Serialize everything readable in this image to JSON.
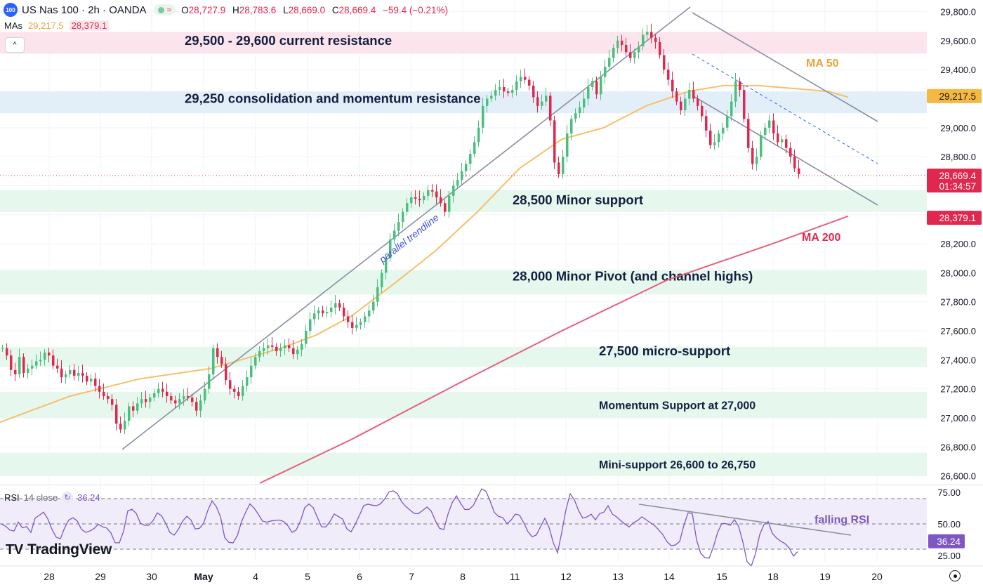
{
  "header": {
    "logo_text": "100",
    "symbol": "US Nas 100 · 2h · OANDA",
    "open_label": "O",
    "open": "28,727.9",
    "high_label": "H",
    "high": "28,783.6",
    "low_label": "L",
    "low": "28,669.0",
    "close_label": "C",
    "close": "28,669.4",
    "change": "−59.4 (−0.21%)"
  },
  "ma_legend": {
    "label": "MAs",
    "ma50_value": "29,217.5",
    "ma200_value": "28,379.1"
  },
  "collapse_icon": "chevron-up-icon",
  "rsi_legend": {
    "label": "RSI",
    "settings": "14 close",
    "value": "36.24"
  },
  "brand": {
    "name": "TradingView",
    "icon": "tradingview-logo-icon"
  },
  "settings_icon": "gear-icon",
  "colors": {
    "up": "#4bbf7d",
    "down": "#e0284f",
    "ma50": "#f5c06a",
    "ma200": "#e8607f",
    "trend": "#8a90a2",
    "rsi": "#7e57c2",
    "resistance_zone": "#fce4ec",
    "consolidation_zone": "#e3eff8",
    "support_zone": "#e6f7ee"
  },
  "chart_data": {
    "type": "candlestick",
    "ylim": [
      26550,
      29880
    ],
    "y_ticks": [
      "29,800.0",
      "29,600.0",
      "29,400.0",
      "29,200.0",
      "29,000.0",
      "28,800.0",
      "28,600.0",
      "28,400.0",
      "28,200.0",
      "28,000.0",
      "27,800.0",
      "27,600.0",
      "27,400.0",
      "27,200.0",
      "27,000.0",
      "26,800.0",
      "26,600.0"
    ],
    "y_tick_values": [
      29800,
      29600,
      29400,
      29200,
      29000,
      28800,
      28600,
      28400,
      28200,
      28000,
      27800,
      27600,
      27400,
      27200,
      27000,
      26800,
      26600
    ],
    "x_ticks": [
      "7",
      "28",
      "29",
      "30",
      "May",
      "4",
      "5",
      "6",
      "7",
      "8",
      "11",
      "12",
      "13",
      "14",
      "15",
      "18",
      "19",
      "20"
    ],
    "x_tick_bold": [
      "May"
    ],
    "price_labels": [
      {
        "text": "29,217.5",
        "value": 29217.5,
        "color": "#f5b942",
        "text_color": "#131722"
      },
      {
        "text": "28,669.4",
        "sub": "01:34:57",
        "value": 28669.4,
        "color": "#e0284f",
        "text_color": "#ffffff"
      },
      {
        "text": "28,379.1",
        "value": 28379.1,
        "color": "#e0284f",
        "text_color": "#ffffff"
      }
    ],
    "zones": [
      {
        "label": "29,500 - 29,600 current resistance",
        "low": 29510,
        "high": 29660,
        "kind": "resistance",
        "label_price": 29600,
        "label_pos": "left"
      },
      {
        "label": "29,250 consolidation and momentum resistance",
        "low": 29100,
        "high": 29250,
        "kind": "consolidation",
        "label_price": 29200,
        "label_pos": "left"
      },
      {
        "label": "28,500 Minor support",
        "low": 28420,
        "high": 28570,
        "kind": "support",
        "label_price": 28500,
        "label_pos": "mid"
      },
      {
        "label": "28,000 Minor Pivot (and channel highs)",
        "low": 27850,
        "high": 28020,
        "kind": "support",
        "label_price": 27975,
        "label_pos": "mid"
      },
      {
        "label": "27,500 micro-support",
        "low": 27350,
        "high": 27490,
        "kind": "support",
        "label_price": 27460,
        "label_pos": "mid2"
      },
      {
        "label": "Momentum Support at 27,000",
        "low": 27000,
        "high": 27180,
        "kind": "support",
        "label_price": 27090,
        "label_pos": "mid2",
        "small": true
      },
      {
        "label": "Mini-support 26,600 to 26,750",
        "low": 26600,
        "high": 26760,
        "kind": "support",
        "label_price": 26680,
        "label_pos": "mid2",
        "small": true
      }
    ],
    "annotations": [
      {
        "text": "MA 50",
        "color": "#e6a33b"
      },
      {
        "text": "MA 200",
        "color": "#e0284f"
      },
      {
        "text": "parallel trendline",
        "color": "#3f51d6"
      },
      {
        "text": "falling RSI",
        "color": "#7e57c2"
      }
    ],
    "series": [
      {
        "name": "MA 50",
        "points": [
          [
            0,
            26970
          ],
          [
            100,
            27150
          ],
          [
            200,
            27270
          ],
          [
            300,
            27340
          ],
          [
            400,
            27480
          ],
          [
            450,
            27570
          ],
          [
            500,
            27700
          ],
          [
            560,
            27920
          ],
          [
            620,
            28150
          ],
          [
            680,
            28420
          ],
          [
            740,
            28720
          ],
          [
            800,
            28920
          ],
          [
            860,
            29000
          ],
          [
            920,
            29150
          ],
          [
            980,
            29250
          ],
          [
            1030,
            29290
          ],
          [
            1080,
            29290
          ],
          [
            1130,
            29270
          ],
          [
            1180,
            29250
          ],
          [
            1208,
            29210
          ]
        ]
      },
      {
        "name": "MA 200",
        "points": [
          [
            370,
            26550
          ],
          [
            500,
            26850
          ],
          [
            650,
            27230
          ],
          [
            800,
            27600
          ],
          [
            950,
            27950
          ],
          [
            1100,
            28200
          ],
          [
            1208,
            28390
          ]
        ]
      }
    ],
    "candles": [
      [
        28,
        27480
      ],
      [
        30,
        27430
      ],
      [
        32,
        27330
      ],
      [
        34,
        27300
      ],
      [
        36,
        27420
      ],
      [
        38,
        27310
      ],
      [
        40,
        27340
      ],
      [
        42,
        27360
      ],
      [
        44,
        27390
      ],
      [
        46,
        27400
      ],
      [
        48,
        27450
      ],
      [
        50,
        27430
      ],
      [
        52,
        27360
      ],
      [
        54,
        27340
      ],
      [
        56,
        27280
      ],
      [
        58,
        27300
      ],
      [
        60,
        27330
      ],
      [
        62,
        27290
      ],
      [
        64,
        27310
      ],
      [
        66,
        27290
      ],
      [
        68,
        27250
      ],
      [
        70,
        27270
      ],
      [
        72,
        27220
      ],
      [
        74,
        27180
      ],
      [
        76,
        27150
      ],
      [
        78,
        27130
      ],
      [
        80,
        27090
      ],
      [
        82,
        26960
      ],
      [
        84,
        26920
      ],
      [
        86,
        26980
      ],
      [
        88,
        27080
      ],
      [
        90,
        27050
      ],
      [
        92,
        27100
      ],
      [
        94,
        27130
      ],
      [
        96,
        27110
      ],
      [
        98,
        27140
      ],
      [
        100,
        27170
      ],
      [
        102,
        27200
      ],
      [
        104,
        27180
      ],
      [
        106,
        27150
      ],
      [
        108,
        27120
      ],
      [
        110,
        27100
      ],
      [
        112,
        27130
      ],
      [
        114,
        27150
      ],
      [
        116,
        27140
      ],
      [
        118,
        27110
      ],
      [
        120,
        27050
      ],
      [
        122,
        27120
      ],
      [
        124,
        27200
      ],
      [
        126,
        27300
      ],
      [
        128,
        27480
      ],
      [
        130,
        27420
      ],
      [
        132,
        27370
      ],
      [
        134,
        27260
      ],
      [
        136,
        27200
      ],
      [
        138,
        27180
      ],
      [
        140,
        27150
      ],
      [
        142,
        27220
      ],
      [
        144,
        27280
      ],
      [
        146,
        27360
      ],
      [
        148,
        27420
      ],
      [
        150,
        27460
      ],
      [
        152,
        27480
      ],
      [
        154,
        27500
      ],
      [
        156,
        27490
      ],
      [
        158,
        27460
      ],
      [
        160,
        27480
      ],
      [
        162,
        27500
      ],
      [
        164,
        27480
      ],
      [
        166,
        27440
      ],
      [
        168,
        27470
      ],
      [
        170,
        27510
      ],
      [
        172,
        27600
      ],
      [
        174,
        27680
      ],
      [
        176,
        27720
      ],
      [
        178,
        27740
      ],
      [
        180,
        27720
      ],
      [
        182,
        27730
      ],
      [
        184,
        27760
      ],
      [
        186,
        27790
      ],
      [
        188,
        27760
      ],
      [
        190,
        27700
      ],
      [
        192,
        27660
      ],
      [
        194,
        27620
      ],
      [
        196,
        27640
      ],
      [
        198,
        27660
      ],
      [
        200,
        27700
      ],
      [
        202,
        27740
      ],
      [
        204,
        27800
      ],
      [
        206,
        27900
      ],
      [
        208,
        28000
      ],
      [
        210,
        28100
      ],
      [
        212,
        28230
      ],
      [
        214,
        28290
      ],
      [
        216,
        28350
      ],
      [
        218,
        28420
      ],
      [
        220,
        28480
      ],
      [
        222,
        28520
      ],
      [
        224,
        28510
      ],
      [
        226,
        28500
      ],
      [
        228,
        28530
      ],
      [
        230,
        28570
      ],
      [
        232,
        28560
      ],
      [
        234,
        28520
      ],
      [
        236,
        28480
      ],
      [
        238,
        28420
      ],
      [
        240,
        28530
      ],
      [
        242,
        28600
      ],
      [
        244,
        28640
      ],
      [
        246,
        28700
      ],
      [
        248,
        28750
      ],
      [
        250,
        28820
      ],
      [
        252,
        28900
      ],
      [
        254,
        29000
      ],
      [
        256,
        29150
      ],
      [
        258,
        29200
      ],
      [
        260,
        29220
      ],
      [
        262,
        29260
      ],
      [
        264,
        29280
      ],
      [
        266,
        29250
      ],
      [
        268,
        29240
      ],
      [
        270,
        29260
      ],
      [
        272,
        29320
      ],
      [
        274,
        29350
      ],
      [
        276,
        29330
      ],
      [
        278,
        29290
      ],
      [
        280,
        29210
      ],
      [
        282,
        29150
      ],
      [
        284,
        29180
      ],
      [
        286,
        29220
      ],
      [
        288,
        29050
      ],
      [
        290,
        28760
      ],
      [
        292,
        28680
      ],
      [
        294,
        28800
      ],
      [
        296,
        28960
      ],
      [
        298,
        29060
      ],
      [
        300,
        29100
      ],
      [
        302,
        29140
      ],
      [
        304,
        29200
      ],
      [
        306,
        29280
      ],
      [
        308,
        29320
      ],
      [
        310,
        29230
      ],
      [
        312,
        29350
      ],
      [
        314,
        29420
      ],
      [
        316,
        29480
      ],
      [
        318,
        29550
      ],
      [
        320,
        29600
      ],
      [
        322,
        29570
      ],
      [
        324,
        29520
      ],
      [
        326,
        29480
      ],
      [
        328,
        29520
      ],
      [
        330,
        29560
      ],
      [
        332,
        29640
      ],
      [
        334,
        29660
      ],
      [
        336,
        29620
      ],
      [
        338,
        29590
      ],
      [
        340,
        29500
      ],
      [
        342,
        29400
      ],
      [
        344,
        29330
      ],
      [
        346,
        29250
      ],
      [
        348,
        29180
      ],
      [
        350,
        29120
      ],
      [
        352,
        29200
      ],
      [
        354,
        29260
      ],
      [
        356,
        29200
      ],
      [
        358,
        29150
      ],
      [
        360,
        29080
      ],
      [
        362,
        28980
      ],
      [
        364,
        28880
      ],
      [
        366,
        28900
      ],
      [
        368,
        28960
      ],
      [
        370,
        29000
      ],
      [
        372,
        29080
      ],
      [
        374,
        29180
      ],
      [
        376,
        29320
      ],
      [
        378,
        29260
      ],
      [
        380,
        29060
      ],
      [
        382,
        28860
      ],
      [
        384,
        28750
      ],
      [
        386,
        28800
      ],
      [
        388,
        28950
      ],
      [
        390,
        29000
      ],
      [
        392,
        29050
      ],
      [
        394,
        28960
      ],
      [
        396,
        28900
      ],
      [
        398,
        28920
      ],
      [
        400,
        28860
      ],
      [
        402,
        28800
      ],
      [
        404,
        28720
      ],
      [
        406,
        28680
      ]
    ],
    "rsi": {
      "ylim": [
        20,
        80
      ],
      "ticks": [
        "75.00",
        "50.00",
        "25.00"
      ],
      "tick_values": [
        75,
        50,
        25
      ],
      "overbought": 70,
      "mid": 50,
      "oversold": 30,
      "current": "36.24"
    }
  }
}
